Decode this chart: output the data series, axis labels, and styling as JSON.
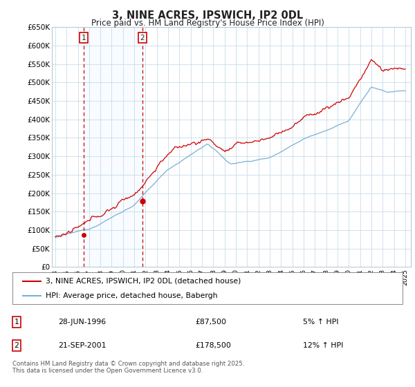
{
  "title": "3, NINE ACRES, IPSWICH, IP2 0DL",
  "subtitle": "Price paid vs. HM Land Registry's House Price Index (HPI)",
  "legend_line1": "3, NINE ACRES, IPSWICH, IP2 0DL (detached house)",
  "legend_line2": "HPI: Average price, detached house, Babergh",
  "sale1_label": "1",
  "sale1_date": "28-JUN-1996",
  "sale1_price": "£87,500",
  "sale1_hpi": "5% ↑ HPI",
  "sale2_label": "2",
  "sale2_date": "21-SEP-2001",
  "sale2_price": "£178,500",
  "sale2_hpi": "12% ↑ HPI",
  "footer": "Contains HM Land Registry data © Crown copyright and database right 2025.\nThis data is licensed under the Open Government Licence v3.0.",
  "red_color": "#cc0000",
  "blue_color": "#7aafd4",
  "shade_color": "#ddeeff",
  "dashed_color": "#cc0000",
  "background_color": "#ffffff",
  "grid_color": "#c8dcea",
  "ylim": [
    0,
    650000
  ],
  "yticks": [
    0,
    50000,
    100000,
    150000,
    200000,
    250000,
    300000,
    350000,
    400000,
    450000,
    500000,
    550000,
    600000,
    650000
  ],
  "xlim_start": 1993.7,
  "xlim_end": 2025.5,
  "sale1_x": 1996.5,
  "sale1_y": 87500,
  "sale2_x": 2001.72,
  "sale2_y": 178500
}
